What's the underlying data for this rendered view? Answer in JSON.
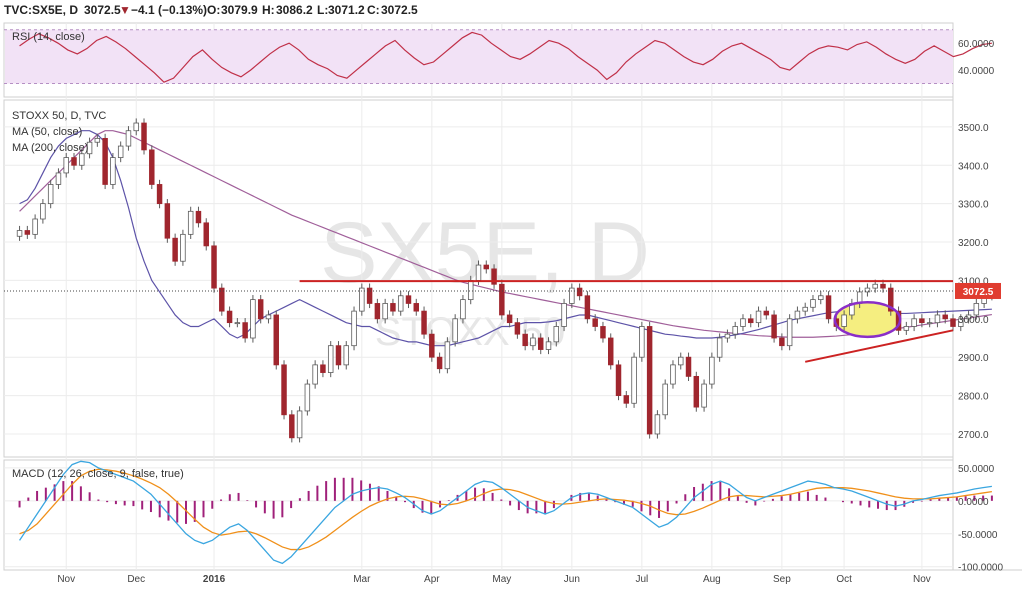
{
  "header": {
    "symbol": "TVC:SX5E, D",
    "last": "3072.5",
    "change": "−4.1 (−0.13%)",
    "open_label": "O:",
    "open": "3079.9",
    "high_label": "H:",
    "high": "3086.2",
    "low_label": "L:",
    "low": "3071.2",
    "close_label": "C:",
    "close": "3072.5"
  },
  "watermark": {
    "main": "SX5E, D",
    "sub": "STOXX 50"
  },
  "colors": {
    "up": "#ffffff",
    "down": "#a0262e",
    "wick": "#5c5c5c",
    "ma50": "#5d53a8",
    "ma200": "#a05f9a",
    "rsi": "#c03048",
    "rsi_band": "#f2e2f6",
    "macd": "#3aa6e0",
    "signal": "#f0901a",
    "hist": "#a0207a",
    "trend": "#cc2222",
    "ellipse": "#8a2ec8",
    "highlight": "#f5ee80",
    "grid": "#ececec",
    "axis_text": "#444444"
  },
  "chart_data": [
    {
      "type": "line",
      "title": "RSI (14, close)",
      "ylim": [
        20,
        75
      ],
      "ticks": [
        "60.0000",
        "40.0000"
      ],
      "tick_values": [
        60,
        40
      ],
      "band": [
        30,
        70
      ],
      "series": [
        {
          "values": [
            58,
            63,
            67,
            64,
            60,
            55,
            52,
            56,
            62,
            65,
            61,
            56,
            50,
            44,
            38,
            31,
            34,
            42,
            50,
            55,
            48,
            42,
            38,
            35,
            40,
            46,
            52,
            57,
            60,
            55,
            48,
            44,
            41,
            36,
            34,
            40,
            46,
            52,
            58,
            62,
            55,
            49,
            44,
            46,
            52,
            58,
            64,
            68,
            66,
            60,
            55,
            50,
            48,
            52,
            57,
            62,
            60,
            56,
            50,
            45,
            40,
            33,
            38,
            46,
            52,
            57,
            62,
            60,
            55,
            50,
            46,
            44,
            48,
            54,
            58,
            60,
            56,
            52,
            48,
            42,
            40,
            46,
            52,
            56,
            58,
            57,
            55,
            59,
            61,
            57,
            52,
            48,
            45,
            48,
            54,
            58,
            54,
            50,
            52,
            56,
            59,
            60
          ]
        }
      ]
    },
    {
      "type": "line",
      "title": "STOXX 50, D, TVC",
      "legend": [
        "MA (50, close)",
        "MA (200, close)"
      ],
      "xlabel": "",
      "ylabel": "",
      "ylim": [
        2640,
        3570
      ],
      "ticks": [
        "3500.0",
        "3400.0",
        "3300.0",
        "3200.0",
        "3100.0",
        "3000.0",
        "2900.0",
        "2800.0",
        "2700.0"
      ],
      "tick_values": [
        3500,
        3400,
        3300,
        3200,
        3100,
        3000,
        2900,
        2800,
        2700
      ],
      "last_price": 3072.5,
      "last_label": "3072.5",
      "x_ticks": [
        "Nov",
        "Dec",
        "2016",
        "Mar",
        "Apr",
        "May",
        "Jun",
        "Jul",
        "Aug",
        "Sep",
        "Oct",
        "Nov"
      ],
      "x_tick_index": [
        6,
        15,
        25,
        44,
        53,
        62,
        71,
        80,
        89,
        98,
        106,
        116
      ],
      "x_range": [
        -2,
        120
      ],
      "close": [
        3230,
        3220,
        3260,
        3300,
        3350,
        3380,
        3420,
        3400,
        3430,
        3460,
        3470,
        3350,
        3420,
        3450,
        3490,
        3510,
        3440,
        3350,
        3300,
        3210,
        3150,
        3220,
        3280,
        3250,
        3190,
        3080,
        3020,
        2990,
        2990,
        2950,
        3050,
        3000,
        3010,
        2880,
        2750,
        2690,
        2760,
        2830,
        2880,
        2860,
        2930,
        2880,
        2930,
        3020,
        3080,
        3040,
        3000,
        3040,
        3020,
        3060,
        3040,
        3020,
        2960,
        2900,
        2870,
        2940,
        3000,
        3050,
        3100,
        3140,
        3130,
        3090,
        3010,
        2990,
        2960,
        2930,
        2950,
        2920,
        2940,
        2980,
        3040,
        3080,
        3060,
        3000,
        2980,
        2950,
        2880,
        2800,
        2780,
        2900,
        2980,
        2700,
        2750,
        2830,
        2880,
        2900,
        2850,
        2770,
        2830,
        2900,
        2950,
        2960,
        2980,
        3000,
        2990,
        3020,
        3010,
        2950,
        2930,
        3000,
        3020,
        3030,
        3050,
        3060,
        3000,
        2980,
        3010,
        3040,
        3070,
        3080,
        3090,
        3080,
        3020,
        2970,
        2980,
        3000,
        2990,
        2990,
        3010,
        3000,
        2980,
        3000,
        3010,
        3040,
        3060,
        3072.5
      ],
      "ma50": [
        3300,
        3310,
        3340,
        3380,
        3420,
        3450,
        3470,
        3480,
        3490,
        3490,
        3480,
        3460,
        3420,
        3360,
        3290,
        3210,
        3150,
        3100,
        3070,
        3040,
        3010,
        2990,
        2980,
        2980,
        2990,
        3000,
        2980,
        2960,
        2950,
        2960,
        2980,
        3000,
        3010,
        3020,
        3030,
        3040,
        3050,
        3040,
        3030,
        3020,
        3010,
        3000,
        2990,
        2985,
        2980,
        2980,
        2970,
        2960,
        2950,
        2945,
        2940,
        2940,
        2935,
        2930,
        2930,
        2930,
        2935,
        2940,
        2945,
        2950,
        2960,
        2970,
        2980,
        2980,
        2985,
        2990,
        2990,
        2990,
        2992,
        2995,
        3000,
        3005,
        3010,
        3010,
        3005,
        3000,
        2995,
        2990,
        2985,
        2980,
        2975,
        2970,
        2965,
        2960,
        2958,
        2955,
        2953,
        2950,
        2950,
        2950,
        2952,
        2955,
        2958,
        2962,
        2967,
        2972,
        2978,
        2984,
        2990,
        2996,
        3000,
        3004,
        3008,
        3012,
        3016,
        3018,
        3020,
        3020,
        3020,
        3018,
        3016,
        3015,
        3014,
        3014,
        3014,
        3015,
        3016,
        3017,
        3018,
        3019,
        3020,
        3021,
        3022,
        3023,
        3024,
        3025
      ],
      "ma200": [
        3280,
        3300,
        3320,
        3340,
        3360,
        3380,
        3400,
        3420,
        3440,
        3460,
        3480,
        3490,
        3490,
        3485,
        3480,
        3470,
        3460,
        3450,
        3440,
        3430,
        3420,
        3410,
        3400,
        3390,
        3380,
        3370,
        3360,
        3350,
        3340,
        3330,
        3320,
        3310,
        3300,
        3290,
        3280,
        3270,
        3262,
        3254,
        3246,
        3238,
        3230,
        3222,
        3214,
        3206,
        3198,
        3190,
        3182,
        3174,
        3166,
        3158,
        3150,
        3142,
        3134,
        3126,
        3118,
        3110,
        3102,
        3095,
        3090,
        3085,
        3080,
        3075,
        3070,
        3066,
        3062,
        3058,
        3054,
        3050,
        3046,
        3042,
        3038,
        3034,
        3030,
        3026,
        3022,
        3018,
        3014,
        3010,
        3006,
        3002,
        2998,
        2994,
        2990,
        2986,
        2982,
        2979,
        2976,
        2973,
        2970,
        2968,
        2966,
        2964,
        2962,
        2960,
        2958,
        2956,
        2955,
        2954,
        2953,
        2952,
        2952,
        2952,
        2952,
        2953,
        2954,
        2955,
        2957,
        2959,
        2961,
        2963,
        2966,
        2969,
        2972,
        2975,
        2978,
        2981,
        2984,
        2987,
        2990,
        2993,
        2996,
        2999,
        3002,
        3005,
        3008,
        3011
      ],
      "trend_lines": [
        {
          "from": [
            36,
            3098
          ],
          "to": [
            120,
            3098
          ]
        },
        {
          "from": [
            101,
            2888
          ],
          "to": [
            120,
            2970
          ]
        }
      ],
      "highlight_ellipse": {
        "center": [
          109,
          2998
        ],
        "rx": 4.2,
        "ry": 45
      }
    },
    {
      "type": "line",
      "title": "MACD (12, 26, close, 9, false, true)",
      "ylim": [
        -105,
        62
      ],
      "ticks": [
        "50.0000",
        "0.0000",
        "-50.0000",
        "-100.0000"
      ],
      "tick_values": [
        50,
        0,
        -50,
        -100
      ],
      "series": [
        {
          "name": "MACD",
          "values": [
            -60,
            -40,
            -20,
            0,
            20,
            40,
            55,
            60,
            58,
            50,
            45,
            40,
            35,
            30,
            20,
            10,
            -5,
            -20,
            -35,
            -50,
            -60,
            -65,
            -60,
            -50,
            -40,
            -35,
            -45,
            -60,
            -75,
            -90,
            -95,
            -85,
            -70,
            -55,
            -40,
            -25,
            -10,
            0,
            10,
            15,
            18,
            20,
            18,
            12,
            5,
            -5,
            -15,
            -20,
            -15,
            -5,
            5,
            15,
            25,
            30,
            28,
            20,
            10,
            0,
            -10,
            -15,
            -20,
            -15,
            -5,
            5,
            10,
            12,
            10,
            5,
            0,
            -5,
            -10,
            -20,
            -30,
            -40,
            -35,
            -25,
            -10,
            5,
            15,
            25,
            30,
            25,
            15,
            5,
            0,
            5,
            10,
            15,
            20,
            25,
            30,
            28,
            25,
            20,
            18,
            15,
            10,
            5,
            0,
            -5,
            -8,
            -5,
            0,
            2,
            5,
            8,
            10,
            12,
            15,
            18,
            20,
            22
          ]
        },
        {
          "name": "Signal",
          "values": [
            -50,
            -45,
            -35,
            -20,
            -5,
            10,
            25,
            38,
            45,
            48,
            47,
            45,
            42,
            38,
            33,
            27,
            20,
            10,
            -2,
            -15,
            -28,
            -40,
            -48,
            -52,
            -50,
            -47,
            -46,
            -50,
            -56,
            -63,
            -70,
            -74,
            -74,
            -70,
            -63,
            -55,
            -45,
            -35,
            -25,
            -16,
            -8,
            -2,
            3,
            6,
            7,
            6,
            3,
            -1,
            -5,
            -6,
            -4,
            0,
            5,
            11,
            16,
            18,
            17,
            14,
            9,
            4,
            -1,
            -4,
            -5,
            -4,
            -2,
            0,
            2,
            3,
            2,
            1,
            -1,
            -4,
            -8,
            -14,
            -19,
            -21,
            -20,
            -16,
            -11,
            -5,
            1,
            6,
            8,
            8,
            7,
            6,
            7,
            8,
            10,
            13,
            16,
            19,
            20,
            20,
            20,
            19,
            17,
            15,
            12,
            9,
            6,
            4,
            3,
            3,
            3,
            4,
            5,
            6,
            8,
            10,
            12,
            14
          ]
        }
      ]
    }
  ]
}
